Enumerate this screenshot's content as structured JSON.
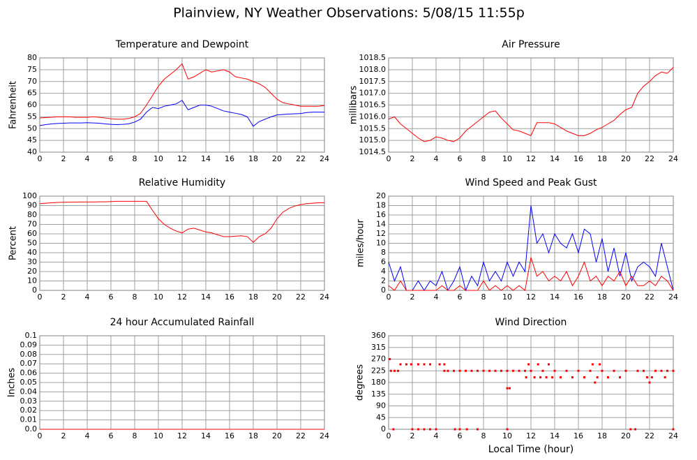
{
  "title": "Plainview, NY Weather Observations: 5/08/15 11:55p",
  "chart_data": [
    {
      "type": "line",
      "title": "Temperature and Dewpoint",
      "ylabel": "Fahrenheit",
      "grid": true,
      "xlim": [
        0,
        24
      ],
      "xticks": [
        0,
        2,
        4,
        6,
        8,
        10,
        12,
        14,
        16,
        18,
        20,
        22,
        24
      ],
      "ylim": [
        40,
        80
      ],
      "yticks": [
        40,
        45,
        50,
        55,
        60,
        65,
        70,
        75,
        80
      ],
      "x": [
        0,
        0.5,
        1,
        1.5,
        2,
        2.5,
        3,
        3.5,
        4,
        4.5,
        5,
        5.5,
        6,
        6.5,
        7,
        7.5,
        8,
        8.5,
        9,
        9.5,
        10,
        10.5,
        11,
        11.5,
        12,
        12.5,
        13,
        13.5,
        14,
        14.5,
        15,
        15.5,
        16,
        16.5,
        17,
        17.5,
        18,
        18.5,
        19,
        19.5,
        20,
        20.5,
        21,
        21.5,
        22,
        22.5,
        23,
        23.5,
        24
      ],
      "series": [
        {
          "color": "#ff0000",
          "values": [
            54.5,
            54.7,
            54.8,
            55,
            55,
            55,
            54.8,
            54.8,
            54.8,
            55,
            54.8,
            54.5,
            54.2,
            54,
            54,
            54.3,
            55,
            56.5,
            60,
            64,
            68,
            71,
            73,
            75,
            77.5,
            71,
            72,
            73.5,
            75,
            74,
            74.5,
            75,
            74,
            72,
            71.5,
            71,
            70,
            69,
            67.5,
            65,
            62.5,
            61,
            60.5,
            60,
            59.5,
            59.5,
            59.5,
            59.5,
            59.8
          ]
        },
        {
          "color": "#0000ff",
          "values": [
            51.3,
            51.7,
            52,
            52.2,
            52.3,
            52.4,
            52.4,
            52.4,
            52.5,
            52.4,
            52.3,
            52,
            51.8,
            51.7,
            51.8,
            52,
            52.8,
            54,
            57,
            59,
            58.5,
            59.5,
            60,
            60.5,
            62,
            58,
            59,
            60,
            60,
            59.5,
            58.5,
            57.5,
            57,
            56.5,
            56,
            55,
            51,
            53,
            54,
            55,
            55.8,
            56,
            56.2,
            56.3,
            56.4,
            56.8,
            57,
            57,
            57
          ]
        }
      ]
    },
    {
      "type": "line",
      "title": "Air Pressure",
      "ylabel": "millibars",
      "grid": true,
      "xlim": [
        0,
        24
      ],
      "xticks": [
        0,
        2,
        4,
        6,
        8,
        10,
        12,
        14,
        16,
        18,
        20,
        22,
        24
      ],
      "ylim": [
        1014.5,
        1018.5
      ],
      "yticks": [
        1014.5,
        {
          "value": 1015,
          "label": "1015.0"
        },
        1015.5,
        {
          "value": 1016,
          "label": "1016.0"
        },
        1016.5,
        {
          "value": 1017,
          "label": "1017.0"
        },
        1017.5,
        {
          "value": 1018,
          "label": "1018.0"
        },
        1018.5
      ],
      "x": [
        0,
        0.5,
        1,
        1.5,
        2,
        2.5,
        3,
        3.5,
        4,
        4.5,
        5,
        5.5,
        6,
        6.5,
        7,
        7.5,
        8,
        8.5,
        9,
        9.5,
        10,
        10.5,
        11,
        11.5,
        12,
        12.5,
        13,
        13.5,
        14,
        14.5,
        15,
        15.5,
        16,
        16.5,
        17,
        17.5,
        18,
        18.5,
        19,
        19.5,
        20,
        20.5,
        21,
        21.5,
        22,
        22.5,
        23,
        23.5,
        24
      ],
      "series": [
        {
          "color": "#ff0000",
          "values": [
            1015.9,
            1016,
            1015.7,
            1015.5,
            1015.3,
            1015.1,
            1014.95,
            1015,
            1015.15,
            1015.1,
            1015,
            1014.95,
            1015.1,
            1015.4,
            1015.6,
            1015.8,
            1016,
            1016.2,
            1016.25,
            1015.95,
            1015.7,
            1015.45,
            1015.4,
            1015.3,
            1015.2,
            1015.75,
            1015.75,
            1015.75,
            1015.7,
            1015.55,
            1015.4,
            1015.3,
            1015.2,
            1015.2,
            1015.3,
            1015.45,
            1015.55,
            1015.7,
            1015.85,
            1016.1,
            1016.3,
            1016.4,
            1017,
            1017.3,
            1017.5,
            1017.75,
            1017.9,
            1017.85,
            1018.1
          ]
        }
      ]
    },
    {
      "type": "line",
      "title": "Relative Humidity",
      "ylabel": "Percent",
      "grid": true,
      "xlim": [
        0,
        24
      ],
      "xticks": [
        0,
        2,
        4,
        6,
        8,
        10,
        12,
        14,
        16,
        18,
        20,
        22,
        24
      ],
      "ylim": [
        0,
        100
      ],
      "yticks": [
        0,
        10,
        20,
        30,
        40,
        50,
        60,
        70,
        80,
        90,
        100
      ],
      "x": [
        0,
        0.5,
        1,
        1.5,
        2,
        2.5,
        3,
        3.5,
        4,
        4.5,
        5,
        5.5,
        6,
        6.5,
        7,
        7.5,
        8,
        8.5,
        9,
        9.5,
        10,
        10.5,
        11,
        11.5,
        12,
        12.5,
        13,
        13.5,
        14,
        14.5,
        15,
        15.5,
        16,
        16.5,
        17,
        17.5,
        18,
        18.5,
        19,
        19.5,
        20,
        20.5,
        21,
        21.5,
        22,
        22.5,
        23,
        23.5,
        24
      ],
      "series": [
        {
          "color": "#ff0000",
          "values": [
            92,
            92.5,
            93,
            93.3,
            93.5,
            93.6,
            93.7,
            93.8,
            93.8,
            93.8,
            94,
            94,
            94.3,
            94.5,
            94.5,
            94.5,
            94.5,
            94.5,
            94.5,
            85,
            76,
            70,
            66,
            63,
            61,
            65,
            66,
            64,
            62,
            61,
            59,
            57,
            57,
            57.5,
            58,
            57,
            51,
            57,
            60,
            66,
            76,
            83,
            87,
            89.5,
            91,
            92,
            92.5,
            93,
            93
          ]
        }
      ]
    },
    {
      "type": "line",
      "title": "Wind Speed and Peak Gust",
      "ylabel": "miles/hour",
      "grid": true,
      "xlim": [
        0,
        24
      ],
      "xticks": [
        0,
        2,
        4,
        6,
        8,
        10,
        12,
        14,
        16,
        18,
        20,
        22,
        24
      ],
      "ylim": [
        0,
        20
      ],
      "yticks": [
        0,
        2,
        4,
        6,
        8,
        10,
        12,
        14,
        16,
        18,
        20
      ],
      "x": [
        0,
        0.5,
        1,
        1.5,
        2,
        2.5,
        3,
        3.5,
        4,
        4.5,
        5,
        5.5,
        6,
        6.5,
        7,
        7.5,
        8,
        8.5,
        9,
        9.5,
        10,
        10.5,
        11,
        11.5,
        12,
        12.5,
        13,
        13.5,
        14,
        14.5,
        15,
        15.5,
        16,
        16.5,
        17,
        17.5,
        18,
        18.5,
        19,
        19.5,
        20,
        20.5,
        21,
        21.5,
        22,
        22.5,
        23,
        23.5,
        24
      ],
      "series": [
        {
          "color": "#0000ff",
          "values": [
            6,
            2,
            5,
            0,
            0,
            2,
            0,
            2,
            1,
            4,
            0,
            2,
            5,
            0,
            3,
            1,
            6,
            2,
            4,
            2,
            6,
            3,
            6,
            4,
            18,
            10,
            12,
            8,
            12,
            10,
            9,
            12,
            8,
            13,
            12,
            6,
            11,
            4,
            9,
            3,
            8,
            2,
            5,
            6,
            5,
            3,
            10,
            5,
            0
          ]
        },
        {
          "color": "#ff0000",
          "values": [
            1,
            0,
            2,
            0,
            0,
            0,
            0,
            0,
            0,
            1,
            0,
            0,
            1,
            0,
            0,
            0,
            2,
            0,
            1,
            0,
            1,
            0,
            1,
            0,
            7,
            3,
            4,
            2,
            3,
            2,
            4,
            1,
            3,
            6,
            2,
            3,
            1,
            3,
            2,
            4,
            1,
            3,
            1,
            1,
            2,
            1,
            3,
            2,
            0
          ]
        }
      ]
    },
    {
      "type": "line",
      "title": "24 hour Accumulated Rainfall",
      "ylabel": "Inches",
      "grid": true,
      "xlim": [
        0,
        24
      ],
      "xticks": [
        0,
        2,
        4,
        6,
        8,
        10,
        12,
        14,
        16,
        18,
        20,
        22,
        24
      ],
      "ylim": [
        0,
        0.1
      ],
      "yticks": [
        {
          "value": 0,
          "label": "0.0"
        },
        0.01,
        0.02,
        0.03,
        0.04,
        0.05,
        0.06,
        0.07,
        0.08,
        0.09,
        0.1
      ],
      "x": [
        0,
        24
      ],
      "series": [
        {
          "color": "#ff0000",
          "values": [
            0,
            0
          ]
        }
      ]
    },
    {
      "type": "scatter",
      "title": "Wind Direction",
      "ylabel": "degrees",
      "xlabel": "Local Time (hour)",
      "grid": true,
      "xlim": [
        0,
        24
      ],
      "xticks": [
        0,
        2,
        4,
        6,
        8,
        10,
        12,
        14,
        16,
        18,
        20,
        22,
        24
      ],
      "ylim": [
        0,
        360
      ],
      "yticks": [
        0,
        45,
        90,
        135,
        180,
        225,
        270,
        315,
        360
      ],
      "color": "#ff0000",
      "x": [
        0.1,
        0.2,
        0.4,
        0.5,
        0.8,
        1,
        1.5,
        1.9,
        2,
        2.5,
        2.5,
        3,
        3,
        3.5,
        3.5,
        4,
        4.3,
        4.7,
        4.7,
        5,
        5.5,
        5.6,
        6,
        6,
        6.5,
        6.6,
        7,
        7.5,
        7.5,
        8,
        8.5,
        9,
        9.5,
        10,
        10,
        10,
        10.2,
        10.5,
        11,
        11.5,
        11.6,
        11.8,
        12,
        12.3,
        12.6,
        12.8,
        13,
        13.3,
        13.5,
        13.8,
        14,
        14.5,
        15,
        15.5,
        16,
        16.5,
        17,
        17.2,
        17.4,
        17.6,
        17.8,
        18,
        18.5,
        19,
        19.5,
        20,
        20.4,
        20.8,
        21,
        21.5,
        21.8,
        22,
        22.2,
        22.5,
        23,
        23.3,
        23.5,
        24,
        24
      ],
      "values": [
        270,
        225,
        0,
        225,
        225,
        250,
        250,
        250,
        0,
        0,
        250,
        0,
        250,
        0,
        250,
        0,
        250,
        250,
        225,
        225,
        225,
        0,
        225,
        0,
        225,
        0,
        225,
        225,
        0,
        225,
        225,
        225,
        225,
        225,
        0,
        158,
        158,
        225,
        225,
        225,
        200,
        250,
        225,
        200,
        250,
        200,
        225,
        200,
        250,
        200,
        225,
        200,
        225,
        200,
        225,
        200,
        225,
        250,
        180,
        200,
        250,
        225,
        200,
        225,
        200,
        225,
        0,
        0,
        225,
        225,
        200,
        180,
        200,
        225,
        225,
        200,
        225,
        225,
        0
      ]
    }
  ]
}
